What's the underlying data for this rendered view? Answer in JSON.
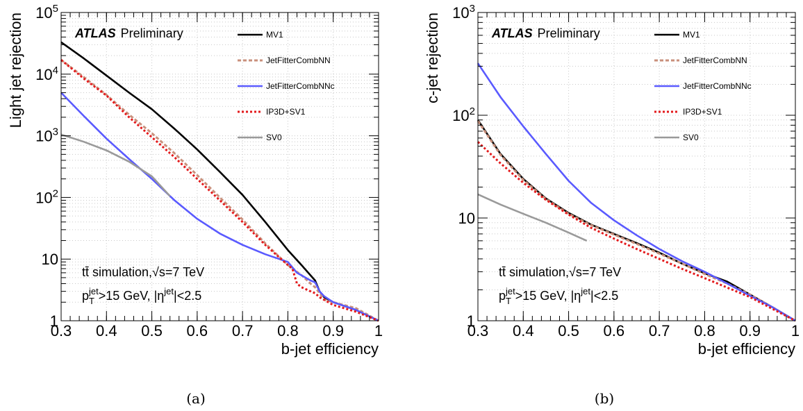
{
  "chart_data": [
    {
      "type": "line",
      "panel": "(a)",
      "brand": "ATLAS",
      "status": "Preliminary",
      "xlabel": "b-jet efficiency",
      "ylabel": "Light jet rejection",
      "xlim": [
        0.3,
        1.0
      ],
      "ylim": [
        1,
        100000
      ],
      "yscale": "log",
      "x_ticks": [
        "0.3",
        "0.4",
        "0.5",
        "0.6",
        "0.7",
        "0.8",
        "0.9",
        "1"
      ],
      "grid": true,
      "legend_position": "top-right",
      "annotations": [
        "tt̄ simulation,√s=7 TeV",
        "p_T^jet>15 GeV, |η^jet|<2.5"
      ],
      "series": [
        {
          "name": "MV1",
          "color": "#000000",
          "style": "solid",
          "x": [
            0.3,
            0.35,
            0.4,
            0.45,
            0.5,
            0.55,
            0.6,
            0.65,
            0.7,
            0.75,
            0.8,
            0.83,
            0.86,
            0.87,
            0.88,
            0.9,
            0.95,
            1.0
          ],
          "y": [
            33000,
            18000,
            9500,
            5000,
            2700,
            1300,
            600,
            260,
            110,
            40,
            14,
            8,
            4.5,
            3,
            2.4,
            2.0,
            1.5,
            1.0
          ]
        },
        {
          "name": "JetFitterCombNN",
          "color": "#c9907c",
          "style": "dashed",
          "x": [
            0.3,
            0.35,
            0.4,
            0.45,
            0.5,
            0.55,
            0.6,
            0.65,
            0.7,
            0.75,
            0.8,
            0.83,
            0.85,
            0.86,
            0.87,
            0.88,
            0.9,
            0.95,
            1.0
          ],
          "y": [
            17000,
            9000,
            4600,
            2200,
            1100,
            520,
            230,
            100,
            44,
            18,
            8,
            5.5,
            4.0,
            3.5,
            2.8,
            2.2,
            2.0,
            1.6,
            1.0
          ]
        },
        {
          "name": "JetFitterCombNNc",
          "color": "#5a5aff",
          "style": "solid",
          "x": [
            0.3,
            0.35,
            0.4,
            0.45,
            0.5,
            0.55,
            0.6,
            0.65,
            0.7,
            0.75,
            0.8,
            0.82,
            0.85,
            0.86,
            0.87,
            0.88,
            0.9,
            0.95,
            1.0
          ],
          "y": [
            5000,
            2100,
            900,
            420,
            200,
            90,
            45,
            26,
            17,
            12,
            9,
            6,
            4.5,
            4.2,
            3.0,
            2.5,
            2.0,
            1.5,
            1.0
          ]
        },
        {
          "name": "IP3D+SV1",
          "color": "#e31a1c",
          "style": "dotted",
          "x": [
            0.3,
            0.35,
            0.4,
            0.45,
            0.5,
            0.55,
            0.6,
            0.65,
            0.7,
            0.75,
            0.8,
            0.81,
            0.82,
            0.83,
            0.85,
            0.86,
            0.87,
            0.9,
            0.95,
            1.0
          ],
          "y": [
            17000,
            8500,
            4500,
            2000,
            950,
            450,
            200,
            90,
            40,
            17,
            8,
            7,
            4.0,
            3.5,
            3.0,
            2.8,
            2.4,
            1.8,
            1.4,
            1.0
          ]
        },
        {
          "name": "SV0",
          "color": "#9a9a9a",
          "style": "solid",
          "x": [
            0.3,
            0.35,
            0.4,
            0.45,
            0.5,
            0.54
          ],
          "y": [
            1050,
            800,
            580,
            380,
            220,
            105
          ]
        }
      ]
    },
    {
      "type": "line",
      "panel": "(b)",
      "brand": "ATLAS",
      "status": "Preliminary",
      "xlabel": "b-jet efficiency",
      "ylabel": "c-jet rejection",
      "xlim": [
        0.3,
        1.0
      ],
      "ylim": [
        1,
        1000
      ],
      "yscale": "log",
      "x_ticks": [
        "0.3",
        "0.4",
        "0.5",
        "0.6",
        "0.7",
        "0.8",
        "0.9",
        "1"
      ],
      "grid": true,
      "legend_position": "top-right",
      "annotations": [
        "tt̄ simulation,√s=7 TeV",
        "p_T^jet>15 GeV, |η^jet|<2.5"
      ],
      "series": [
        {
          "name": "MV1",
          "color": "#000000",
          "style": "solid",
          "x": [
            0.3,
            0.35,
            0.4,
            0.45,
            0.5,
            0.55,
            0.6,
            0.65,
            0.7,
            0.75,
            0.8,
            0.85,
            0.9,
            0.95,
            1.0
          ],
          "y": [
            90,
            42,
            24,
            15.5,
            11.2,
            8.6,
            7.0,
            5.7,
            4.6,
            3.6,
            2.9,
            2.4,
            1.8,
            1.35,
            1.0
          ]
        },
        {
          "name": "JetFitterCombNN",
          "color": "#c9907c",
          "style": "dashed",
          "x": [
            0.3,
            0.35,
            0.4,
            0.45,
            0.5,
            0.55,
            0.6,
            0.65,
            0.7,
            0.75,
            0.8,
            0.85,
            0.9,
            0.95,
            1.0
          ],
          "y": [
            88,
            41,
            23.5,
            15.3,
            11.0,
            8.5,
            6.9,
            5.6,
            4.5,
            3.6,
            2.85,
            2.3,
            1.8,
            1.35,
            1.0
          ]
        },
        {
          "name": "JetFitterCombNNc",
          "color": "#5a5aff",
          "style": "solid",
          "x": [
            0.3,
            0.35,
            0.4,
            0.45,
            0.5,
            0.55,
            0.6,
            0.65,
            0.7,
            0.75,
            0.8,
            0.85,
            0.9,
            0.95,
            1.0
          ],
          "y": [
            320,
            150,
            78,
            42,
            23,
            14,
            9.5,
            6.8,
            5.0,
            3.8,
            3.0,
            2.3,
            1.75,
            1.35,
            1.0
          ]
        },
        {
          "name": "IP3D+SV1",
          "color": "#e31a1c",
          "style": "dotted",
          "x": [
            0.3,
            0.35,
            0.4,
            0.45,
            0.5,
            0.55,
            0.6,
            0.65,
            0.7,
            0.75,
            0.8,
            0.85,
            0.9,
            0.95,
            1.0
          ],
          "y": [
            55,
            34,
            22,
            15,
            10.8,
            8.0,
            6.3,
            5.0,
            4.0,
            3.2,
            2.6,
            2.1,
            1.7,
            1.3,
            1.0
          ]
        },
        {
          "name": "SV0",
          "color": "#9a9a9a",
          "style": "solid",
          "x": [
            0.3,
            0.35,
            0.4,
            0.45,
            0.5,
            0.54
          ],
          "y": [
            17,
            13.5,
            11,
            9,
            7.2,
            6.0
          ]
        }
      ]
    }
  ]
}
